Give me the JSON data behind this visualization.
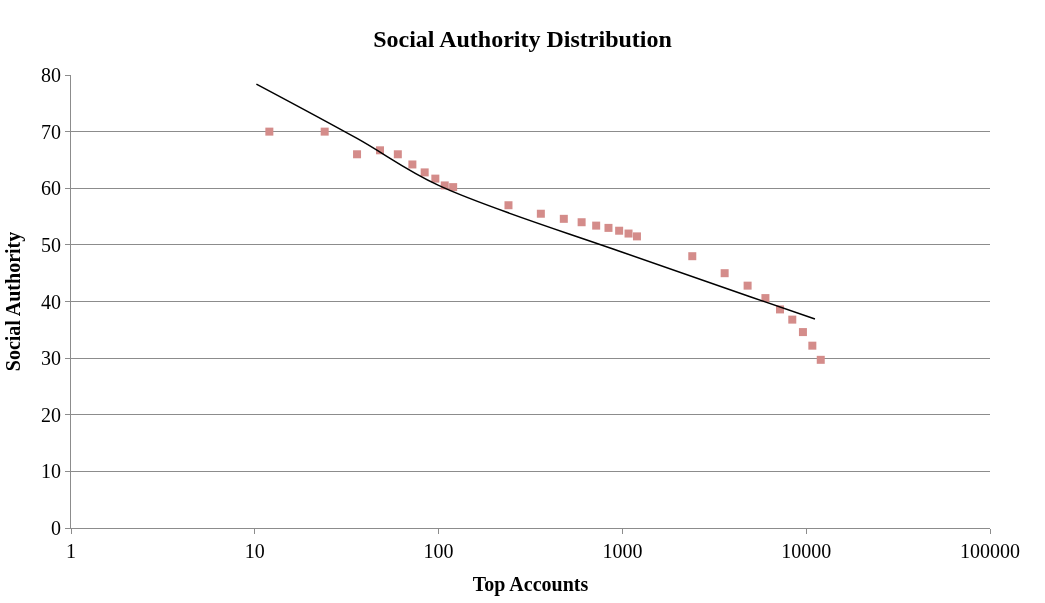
{
  "chart_data": {
    "type": "scatter",
    "title": "Social Authority Distribution",
    "xlabel": "Top Accounts",
    "ylabel": "Social Authority",
    "log": "x",
    "xlim": [
      1,
      100000
    ],
    "xticks": [
      1,
      10,
      100,
      1000,
      10000,
      100000
    ],
    "ylim": [
      0,
      80
    ],
    "yticks": [
      0,
      10,
      20,
      30,
      40,
      50,
      60,
      70,
      80
    ],
    "grid": "y",
    "series": [
      {
        "color": "#d48c8a",
        "marker": "square",
        "x": [
          12,
          24,
          36,
          48,
          60,
          72,
          84,
          96,
          108,
          120,
          240,
          360,
          480,
          600,
          720,
          840,
          960,
          1080,
          1200,
          2400,
          3600,
          4800,
          6000,
          7200,
          8400,
          9600,
          10800,
          12000
        ],
        "values": [
          70,
          70,
          66,
          66.7,
          66,
          64.2,
          62.8,
          61.7,
          60.5,
          60.2,
          57,
          55.5,
          54.6,
          54,
          53.4,
          53,
          52.5,
          52,
          51.5,
          48,
          45,
          42.8,
          40.6,
          38.6,
          36.8,
          34.6,
          32.2,
          29.7
        ]
      },
      {
        "type": "line",
        "marker": "none",
        "color": "#000000",
        "x": [
          10.2,
          36,
          100,
          1000,
          5000,
          11160
        ],
        "values": [
          78.4,
          68.8,
          60.5,
          48.7,
          40.8,
          36.9
        ]
      }
    ]
  }
}
